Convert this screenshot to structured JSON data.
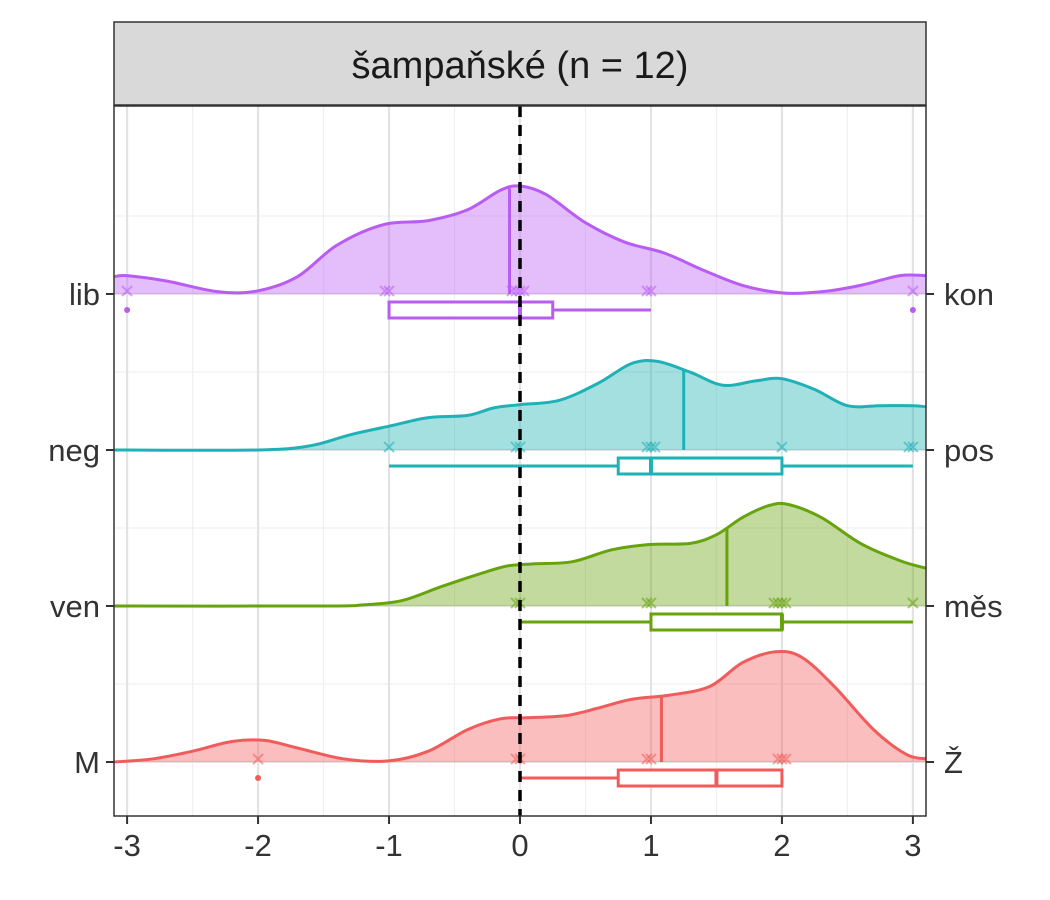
{
  "facet": {
    "title": "šampaňské (n = 12)"
  },
  "chart_data": {
    "type": "ridgeline-density-with-boxplots",
    "title": "",
    "xlabel": "",
    "ylabel": "",
    "xlim": [
      -3.1,
      3.1
    ],
    "x_ticks": [
      -3,
      -2,
      -1,
      0,
      1,
      2,
      3
    ],
    "x_tick_labels": [
      "-3",
      "-2",
      "-1",
      "0",
      "1",
      "2",
      "3"
    ],
    "reference_line": {
      "x": 0,
      "style": "dashed",
      "color": "#000000"
    },
    "grid": true,
    "series": [
      {
        "left_label": "lib",
        "right_label": "kon",
        "color": "#B95CF4",
        "density": [
          [
            -3.1,
            0.16
          ],
          [
            -3.0,
            0.17
          ],
          [
            -2.7,
            0.12
          ],
          [
            -2.3,
            0.02
          ],
          [
            -2.0,
            0.03
          ],
          [
            -1.7,
            0.16
          ],
          [
            -1.4,
            0.45
          ],
          [
            -1.05,
            0.64
          ],
          [
            -0.7,
            0.68
          ],
          [
            -0.4,
            0.78
          ],
          [
            -0.15,
            0.96
          ],
          [
            0.0,
            1.0
          ],
          [
            0.2,
            0.92
          ],
          [
            0.5,
            0.66
          ],
          [
            0.8,
            0.48
          ],
          [
            1.1,
            0.38
          ],
          [
            1.4,
            0.22
          ],
          [
            1.7,
            0.08
          ],
          [
            2.0,
            0.01
          ],
          [
            2.3,
            0.02
          ],
          [
            2.6,
            0.08
          ],
          [
            2.9,
            0.17
          ],
          [
            3.1,
            0.17
          ]
        ],
        "mean": -0.08,
        "points": [
          -3,
          -1,
          -1,
          0,
          0,
          0,
          0,
          1,
          1,
          3
        ],
        "box": {
          "q1": -1,
          "median": 0,
          "q3": 0.25,
          "whisker_low": -1,
          "whisker_high": 1
        },
        "outliers": [
          -3,
          3
        ]
      },
      {
        "left_label": "neg",
        "right_label": "pos",
        "color": "#1FB1B5",
        "density": [
          [
            -3.1,
            0.0
          ],
          [
            -2.0,
            0.0
          ],
          [
            -1.6,
            0.04
          ],
          [
            -1.3,
            0.14
          ],
          [
            -1.0,
            0.22
          ],
          [
            -0.7,
            0.3
          ],
          [
            -0.4,
            0.32
          ],
          [
            -0.2,
            0.39
          ],
          [
            0.0,
            0.42
          ],
          [
            0.3,
            0.46
          ],
          [
            0.6,
            0.62
          ],
          [
            0.85,
            0.8
          ],
          [
            1.05,
            0.82
          ],
          [
            1.3,
            0.72
          ],
          [
            1.55,
            0.6
          ],
          [
            1.8,
            0.64
          ],
          [
            2.0,
            0.66
          ],
          [
            2.25,
            0.56
          ],
          [
            2.5,
            0.41
          ],
          [
            2.75,
            0.41
          ],
          [
            3.0,
            0.41
          ],
          [
            3.1,
            0.4
          ]
        ],
        "mean": 1.25,
        "points": [
          -1,
          0,
          0,
          1,
          1,
          1,
          2,
          3,
          3
        ],
        "box": {
          "q1": 0.75,
          "median": 1,
          "q3": 2,
          "whisker_low": -1,
          "whisker_high": 3
        },
        "outliers": []
      },
      {
        "left_label": "ven",
        "right_label": "měs",
        "color": "#67A30D",
        "density": [
          [
            -3.1,
            0.0
          ],
          [
            -1.5,
            0.0
          ],
          [
            -1.2,
            0.01
          ],
          [
            -0.9,
            0.05
          ],
          [
            -0.6,
            0.18
          ],
          [
            -0.3,
            0.3
          ],
          [
            -0.1,
            0.37
          ],
          [
            0.1,
            0.39
          ],
          [
            0.4,
            0.41
          ],
          [
            0.7,
            0.52
          ],
          [
            1.0,
            0.57
          ],
          [
            1.3,
            0.58
          ],
          [
            1.5,
            0.66
          ],
          [
            1.7,
            0.82
          ],
          [
            1.9,
            0.93
          ],
          [
            2.05,
            0.94
          ],
          [
            2.3,
            0.82
          ],
          [
            2.6,
            0.58
          ],
          [
            2.9,
            0.42
          ],
          [
            3.1,
            0.35
          ]
        ],
        "mean": 1.58,
        "points": [
          0,
          0,
          1,
          1,
          2,
          2,
          2,
          2,
          3
        ],
        "box": {
          "q1": 1,
          "median": 2,
          "q3": 2,
          "whisker_low": 0,
          "whisker_high": 3
        },
        "outliers": []
      },
      {
        "left_label": "M",
        "right_label": "Ž",
        "color": "#F05C5B",
        "density": [
          [
            -3.1,
            0.0
          ],
          [
            -2.8,
            0.03
          ],
          [
            -2.5,
            0.1
          ],
          [
            -2.2,
            0.19
          ],
          [
            -1.95,
            0.2
          ],
          [
            -1.7,
            0.13
          ],
          [
            -1.35,
            0.03
          ],
          [
            -1.0,
            0.01
          ],
          [
            -0.7,
            0.1
          ],
          [
            -0.4,
            0.3
          ],
          [
            -0.15,
            0.4
          ],
          [
            0.05,
            0.41
          ],
          [
            0.35,
            0.43
          ],
          [
            0.6,
            0.5
          ],
          [
            0.85,
            0.58
          ],
          [
            1.15,
            0.62
          ],
          [
            1.45,
            0.7
          ],
          [
            1.7,
            0.92
          ],
          [
            1.95,
            1.02
          ],
          [
            2.15,
            0.97
          ],
          [
            2.4,
            0.7
          ],
          [
            2.7,
            0.3
          ],
          [
            2.95,
            0.07
          ],
          [
            3.1,
            0.03
          ]
        ],
        "mean": 1.08,
        "points": [
          -2,
          0,
          0,
          1,
          1,
          2,
          2,
          2
        ],
        "box": {
          "q1": 0.75,
          "median": 1.5,
          "q3": 2,
          "whisker_low": 0,
          "whisker_high": 2
        },
        "outliers": [
          -2
        ]
      }
    ]
  }
}
